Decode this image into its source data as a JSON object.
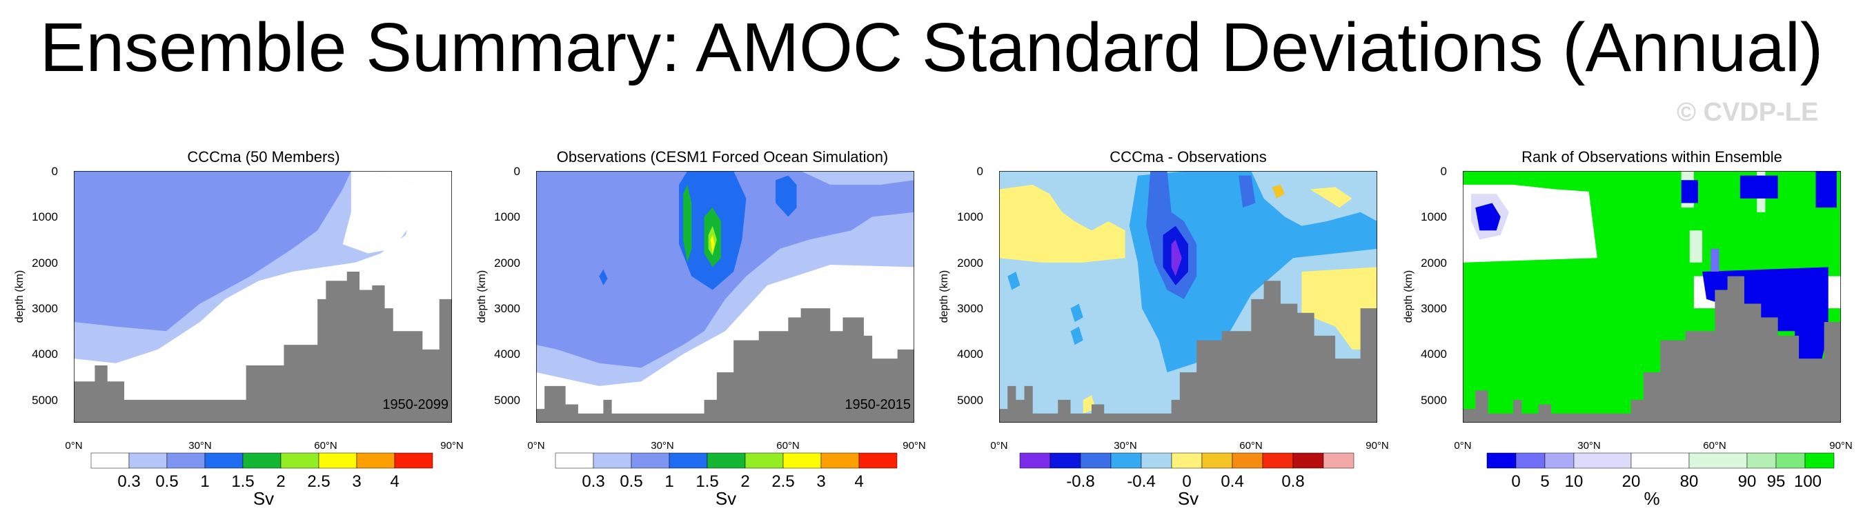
{
  "title": "Ensemble Summary: AMOC Standard Deviations (Annual)",
  "watermark": "© CVDP-LE",
  "colors": {
    "land": "#808080",
    "sv": [
      "#ffffff",
      "#b4c5f8",
      "#7e96f2",
      "#1f6cf1",
      "#14b734",
      "#92ee22",
      "#fffb00",
      "#fd9f00",
      "#fb2000"
    ],
    "diff": [
      "#7a2ce8",
      "#0b15e0",
      "#3a6fe8",
      "#35a9f2",
      "#a9d6f0",
      "#fff27a",
      "#f4c425",
      "#f58c0f",
      "#f52a0c",
      "#b70d0d",
      "#f4a8a8"
    ],
    "rank": [
      "#0000ee",
      "#6e6ef6",
      "#aaaaf8",
      "#dcdcfa",
      "#ffffff",
      "#dcf8dc",
      "#b4f0b4",
      "#7cea7c",
      "#00ee00"
    ]
  },
  "panels": [
    {
      "title": "CCCma (50 Members)",
      "period": "1950-2099",
      "ylabel": "depth (km)",
      "yticks": [
        "0",
        "1000",
        "2000",
        "3000",
        "4000",
        "5000"
      ],
      "xticks": [
        "0°N",
        "30°N",
        "60°N",
        "90°N"
      ]
    },
    {
      "title": "Observations (CESM1 Forced Ocean Simulation)",
      "period": "1950-2015",
      "ylabel": "depth (km)",
      "yticks": [
        "0",
        "1000",
        "2000",
        "3000",
        "4000",
        "5000"
      ],
      "xticks": [
        "0°N",
        "30°N",
        "60°N",
        "90°N"
      ]
    },
    {
      "title": "CCCma - Observations",
      "period": "",
      "ylabel": "depth (km)",
      "yticks": [
        "0",
        "1000",
        "2000",
        "3000",
        "4000",
        "5000"
      ],
      "xticks": [
        "0°N",
        "30°N",
        "60°N",
        "90°N"
      ]
    },
    {
      "title": "Rank of Observations within Ensemble",
      "period": "",
      "ylabel": "depth (km)",
      "yticks": [
        "0",
        "1000",
        "2000",
        "3000",
        "4000",
        "5000"
      ],
      "xticks": [
        "0°N",
        "30°N",
        "60°N",
        "90°N"
      ]
    }
  ],
  "colorbars": [
    {
      "labels": [
        "0.3",
        "0.5",
        "1",
        "1.5",
        "2",
        "2.5",
        "3",
        "4"
      ],
      "unit": "Sv"
    },
    {
      "labels": [
        "0.3",
        "0.5",
        "1",
        "1.5",
        "2",
        "2.5",
        "3",
        "4"
      ],
      "unit": "Sv"
    },
    {
      "labels": [
        "-0.8",
        "-0.4",
        "0",
        "0.4",
        "0.8"
      ],
      "unit": "Sv"
    },
    {
      "labels": [
        "0",
        "5",
        "10",
        "20",
        "80",
        "90",
        "95",
        "100"
      ],
      "unit": "%"
    }
  ],
  "chart_data": [
    {
      "type": "heatmap",
      "title": "CCCma (50 Members)",
      "x_range_degN": [
        0,
        90
      ],
      "y_range_m": [
        0,
        5500
      ],
      "levels_sv": [
        0.3,
        0.5,
        1,
        1.5,
        2,
        2.5,
        3,
        4
      ],
      "note": "AMOC standard deviation, mostly 0.5-1 Sv in upper 3000 m; period 1950-2099"
    },
    {
      "type": "heatmap",
      "title": "Observations (CESM1 Forced Ocean Simulation)",
      "x_range_degN": [
        0,
        90
      ],
      "y_range_m": [
        0,
        5500
      ],
      "levels_sv": [
        0.3,
        0.5,
        1,
        1.5,
        2,
        2.5,
        3,
        4
      ],
      "note": "maximum ~2.5-3 Sv near 40°N, 1500 m; period 1950-2015"
    },
    {
      "type": "heatmap",
      "title": "CCCma - Observations",
      "x_range_degN": [
        0,
        90
      ],
      "y_range_m": [
        0,
        5500
      ],
      "levels_sv": [
        -0.8,
        -0.4,
        0,
        0.4,
        0.8
      ],
      "note": "difference minimum ~ -1 Sv near 40°N, 2000 m"
    },
    {
      "type": "heatmap",
      "title": "Rank of Observations within Ensemble",
      "x_range_degN": [
        0,
        90
      ],
      "y_range_m": [
        0,
        5500
      ],
      "levels_pct": [
        0,
        5,
        10,
        20,
        80,
        90,
        95,
        100
      ]
    }
  ]
}
